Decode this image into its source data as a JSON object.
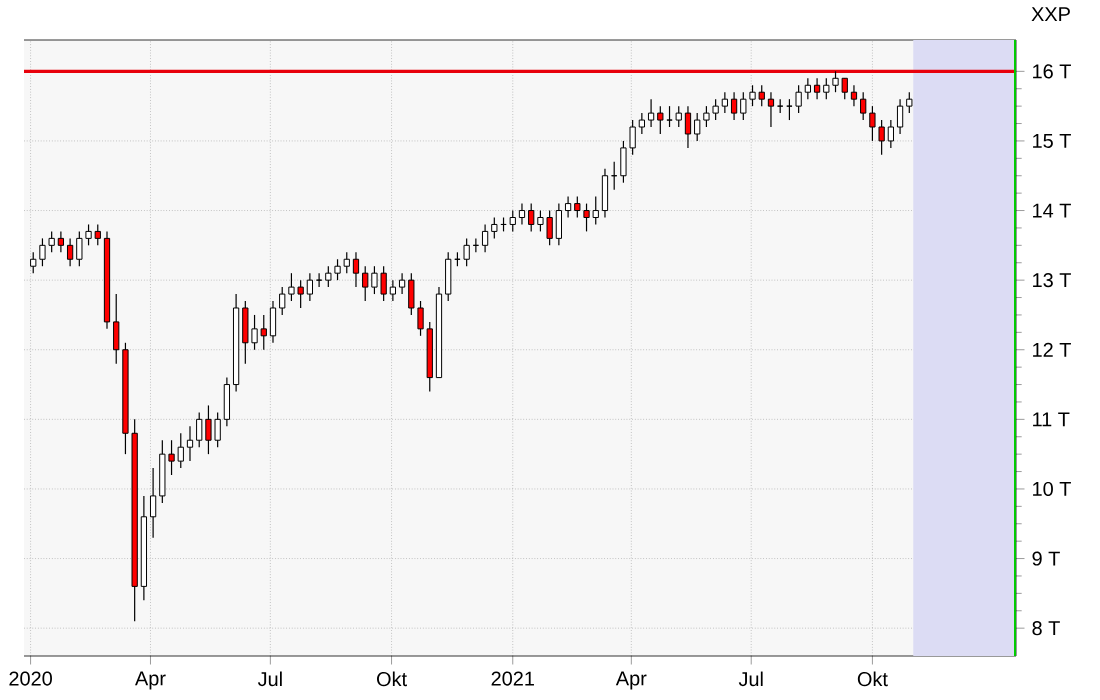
{
  "chart_data": {
    "type": "candlestick",
    "title": "XXP",
    "x": [
      "2020-01-03",
      "2020-01-10",
      "2020-01-17",
      "2020-01-24",
      "2020-01-31",
      "2020-02-07",
      "2020-02-14",
      "2020-02-21",
      "2020-02-28",
      "2020-03-06",
      "2020-03-13",
      "2020-03-20",
      "2020-03-27",
      "2020-04-03",
      "2020-04-10",
      "2020-04-17",
      "2020-04-24",
      "2020-05-01",
      "2020-05-08",
      "2020-05-15",
      "2020-05-22",
      "2020-05-29",
      "2020-06-05",
      "2020-06-12",
      "2020-06-19",
      "2020-06-26",
      "2020-07-03",
      "2020-07-10",
      "2020-07-17",
      "2020-07-24",
      "2020-07-31",
      "2020-08-07",
      "2020-08-14",
      "2020-08-21",
      "2020-08-28",
      "2020-09-04",
      "2020-09-11",
      "2020-09-18",
      "2020-09-25",
      "2020-10-02",
      "2020-10-09",
      "2020-10-16",
      "2020-10-23",
      "2020-10-30",
      "2020-11-06",
      "2020-11-13",
      "2020-11-20",
      "2020-11-27",
      "2020-12-04",
      "2020-12-11",
      "2020-12-18",
      "2020-12-25",
      "2021-01-01",
      "2021-01-08",
      "2021-01-15",
      "2021-01-22",
      "2021-01-29",
      "2021-02-05",
      "2021-02-12",
      "2021-02-19",
      "2021-02-26",
      "2021-03-05",
      "2021-03-12",
      "2021-03-19",
      "2021-03-26",
      "2021-04-02",
      "2021-04-09",
      "2021-04-16",
      "2021-04-23",
      "2021-04-30",
      "2021-05-07",
      "2021-05-14",
      "2021-05-21",
      "2021-05-28",
      "2021-06-04",
      "2021-06-11",
      "2021-06-18",
      "2021-06-25",
      "2021-07-02",
      "2021-07-09",
      "2021-07-16",
      "2021-07-23",
      "2021-07-30",
      "2021-08-06",
      "2021-08-13",
      "2021-08-20",
      "2021-08-27",
      "2021-09-03",
      "2021-09-10",
      "2021-09-17",
      "2021-09-24",
      "2021-10-01",
      "2021-10-08",
      "2021-10-15",
      "2021-10-22",
      "2021-10-29"
    ],
    "ohlc": [
      [
        13.2,
        13.4,
        13.1,
        13.3
      ],
      [
        13.3,
        13.6,
        13.2,
        13.5
      ],
      [
        13.5,
        13.7,
        13.4,
        13.6
      ],
      [
        13.6,
        13.7,
        13.4,
        13.5
      ],
      [
        13.5,
        13.6,
        13.2,
        13.3
      ],
      [
        13.3,
        13.7,
        13.2,
        13.6
      ],
      [
        13.6,
        13.8,
        13.5,
        13.7
      ],
      [
        13.7,
        13.8,
        13.5,
        13.6
      ],
      [
        13.6,
        13.7,
        12.3,
        12.4
      ],
      [
        12.4,
        12.8,
        11.8,
        12.0
      ],
      [
        12.0,
        12.1,
        10.5,
        10.8
      ],
      [
        10.8,
        11.0,
        8.1,
        8.6
      ],
      [
        8.6,
        9.9,
        8.4,
        9.6
      ],
      [
        9.6,
        10.3,
        9.3,
        9.9
      ],
      [
        9.9,
        10.7,
        9.8,
        10.5
      ],
      [
        10.5,
        10.7,
        10.2,
        10.4
      ],
      [
        10.4,
        10.8,
        10.3,
        10.6
      ],
      [
        10.6,
        10.9,
        10.4,
        10.7
      ],
      [
        10.7,
        11.1,
        10.6,
        11.0
      ],
      [
        11.0,
        11.2,
        10.5,
        10.7
      ],
      [
        10.7,
        11.1,
        10.6,
        11.0
      ],
      [
        11.0,
        11.6,
        10.9,
        11.5
      ],
      [
        11.5,
        12.8,
        11.4,
        12.6
      ],
      [
        12.6,
        12.7,
        11.8,
        12.1
      ],
      [
        12.1,
        12.5,
        12.0,
        12.3
      ],
      [
        12.3,
        12.5,
        12.0,
        12.2
      ],
      [
        12.2,
        12.7,
        12.1,
        12.6
      ],
      [
        12.6,
        12.9,
        12.5,
        12.8
      ],
      [
        12.8,
        13.1,
        12.7,
        12.9
      ],
      [
        12.9,
        13.0,
        12.6,
        12.8
      ],
      [
        12.8,
        13.1,
        12.7,
        13.0
      ],
      [
        13.0,
        13.1,
        12.9,
        13.0
      ],
      [
        13.0,
        13.2,
        12.9,
        13.1
      ],
      [
        13.1,
        13.3,
        13.0,
        13.2
      ],
      [
        13.2,
        13.4,
        13.1,
        13.3
      ],
      [
        13.3,
        13.4,
        12.9,
        13.1
      ],
      [
        13.1,
        13.2,
        12.7,
        12.9
      ],
      [
        12.9,
        13.2,
        12.8,
        13.1
      ],
      [
        13.1,
        13.2,
        12.7,
        12.8
      ],
      [
        12.8,
        13.0,
        12.7,
        12.9
      ],
      [
        12.9,
        13.1,
        12.8,
        13.0
      ],
      [
        13.0,
        13.1,
        12.5,
        12.6
      ],
      [
        12.6,
        12.7,
        12.2,
        12.3
      ],
      [
        12.3,
        12.4,
        11.4,
        11.6
      ],
      [
        11.6,
        12.9,
        11.6,
        12.8
      ],
      [
        12.8,
        13.4,
        12.7,
        13.3
      ],
      [
        13.3,
        13.4,
        13.2,
        13.3
      ],
      [
        13.3,
        13.6,
        13.2,
        13.5
      ],
      [
        13.5,
        13.6,
        13.4,
        13.5
      ],
      [
        13.5,
        13.8,
        13.4,
        13.7
      ],
      [
        13.7,
        13.9,
        13.6,
        13.8
      ],
      [
        13.8,
        13.9,
        13.7,
        13.8
      ],
      [
        13.8,
        14.0,
        13.7,
        13.9
      ],
      [
        13.9,
        14.1,
        13.8,
        14.0
      ],
      [
        14.0,
        14.1,
        13.7,
        13.8
      ],
      [
        13.8,
        14.0,
        13.7,
        13.9
      ],
      [
        13.9,
        14.0,
        13.5,
        13.6
      ],
      [
        13.6,
        14.1,
        13.5,
        14.0
      ],
      [
        14.0,
        14.2,
        13.9,
        14.1
      ],
      [
        14.1,
        14.2,
        13.9,
        14.0
      ],
      [
        14.0,
        14.1,
        13.7,
        13.9
      ],
      [
        13.9,
        14.2,
        13.8,
        14.0
      ],
      [
        14.0,
        14.6,
        13.9,
        14.5
      ],
      [
        14.5,
        14.7,
        14.3,
        14.5
      ],
      [
        14.5,
        15.0,
        14.4,
        14.9
      ],
      [
        14.9,
        15.3,
        14.8,
        15.2
      ],
      [
        15.2,
        15.4,
        15.1,
        15.3
      ],
      [
        15.3,
        15.6,
        15.2,
        15.4
      ],
      [
        15.4,
        15.5,
        15.1,
        15.3
      ],
      [
        15.3,
        15.5,
        15.2,
        15.3
      ],
      [
        15.3,
        15.5,
        15.2,
        15.4
      ],
      [
        15.4,
        15.5,
        14.9,
        15.1
      ],
      [
        15.1,
        15.4,
        15.0,
        15.3
      ],
      [
        15.3,
        15.5,
        15.2,
        15.4
      ],
      [
        15.4,
        15.6,
        15.3,
        15.5
      ],
      [
        15.5,
        15.7,
        15.4,
        15.6
      ],
      [
        15.6,
        15.7,
        15.3,
        15.4
      ],
      [
        15.4,
        15.7,
        15.3,
        15.6
      ],
      [
        15.6,
        15.8,
        15.5,
        15.7
      ],
      [
        15.7,
        15.8,
        15.5,
        15.6
      ],
      [
        15.6,
        15.7,
        15.2,
        15.5
      ],
      [
        15.5,
        15.6,
        15.4,
        15.5
      ],
      [
        15.5,
        15.6,
        15.3,
        15.5
      ],
      [
        15.5,
        15.8,
        15.4,
        15.7
      ],
      [
        15.7,
        15.9,
        15.6,
        15.8
      ],
      [
        15.8,
        15.9,
        15.6,
        15.7
      ],
      [
        15.7,
        15.9,
        15.6,
        15.8
      ],
      [
        15.8,
        16.0,
        15.7,
        15.9
      ],
      [
        15.9,
        15.9,
        15.6,
        15.7
      ],
      [
        15.7,
        15.8,
        15.5,
        15.6
      ],
      [
        15.6,
        15.7,
        15.3,
        15.4
      ],
      [
        15.4,
        15.5,
        15.0,
        15.2
      ],
      [
        15.2,
        15.3,
        14.8,
        15.0
      ],
      [
        15.0,
        15.3,
        14.9,
        15.2
      ],
      [
        15.2,
        15.6,
        15.1,
        15.5
      ],
      [
        15.5,
        15.7,
        15.4,
        15.6
      ]
    ],
    "xlim": [
      "2019-12-27",
      "2022-01-18"
    ],
    "xticks": [
      {
        "value": "2020-01-01",
        "label": "2020"
      },
      {
        "value": "2020-04-01",
        "label": "Apr"
      },
      {
        "value": "2020-07-01",
        "label": "Jul"
      },
      {
        "value": "2020-10-01",
        "label": "Okt"
      },
      {
        "value": "2021-01-01",
        "label": "2021"
      },
      {
        "value": "2021-04-01",
        "label": "Apr"
      },
      {
        "value": "2021-07-01",
        "label": "Jul"
      },
      {
        "value": "2021-10-01",
        "label": "Okt"
      }
    ],
    "ylim": [
      7.6,
      16.45
    ],
    "yticks": [
      {
        "value": 8,
        "label": "8 T"
      },
      {
        "value": 9,
        "label": "9 T"
      },
      {
        "value": 10,
        "label": "10 T"
      },
      {
        "value": 11,
        "label": "11 T"
      },
      {
        "value": 12,
        "label": "12 T"
      },
      {
        "value": 13,
        "label": "13 T"
      },
      {
        "value": 14,
        "label": "14 T"
      },
      {
        "value": 15,
        "label": "15 T"
      },
      {
        "value": 16,
        "label": "16 T"
      }
    ],
    "grid": true,
    "ref_lines": [
      {
        "axis": "y",
        "value": 16,
        "color": "#e8000b"
      }
    ],
    "bands": [
      {
        "axis": "x",
        "from": "2021-11-01",
        "to": "2022-01-18",
        "color": "#dcdcf4"
      }
    ]
  }
}
